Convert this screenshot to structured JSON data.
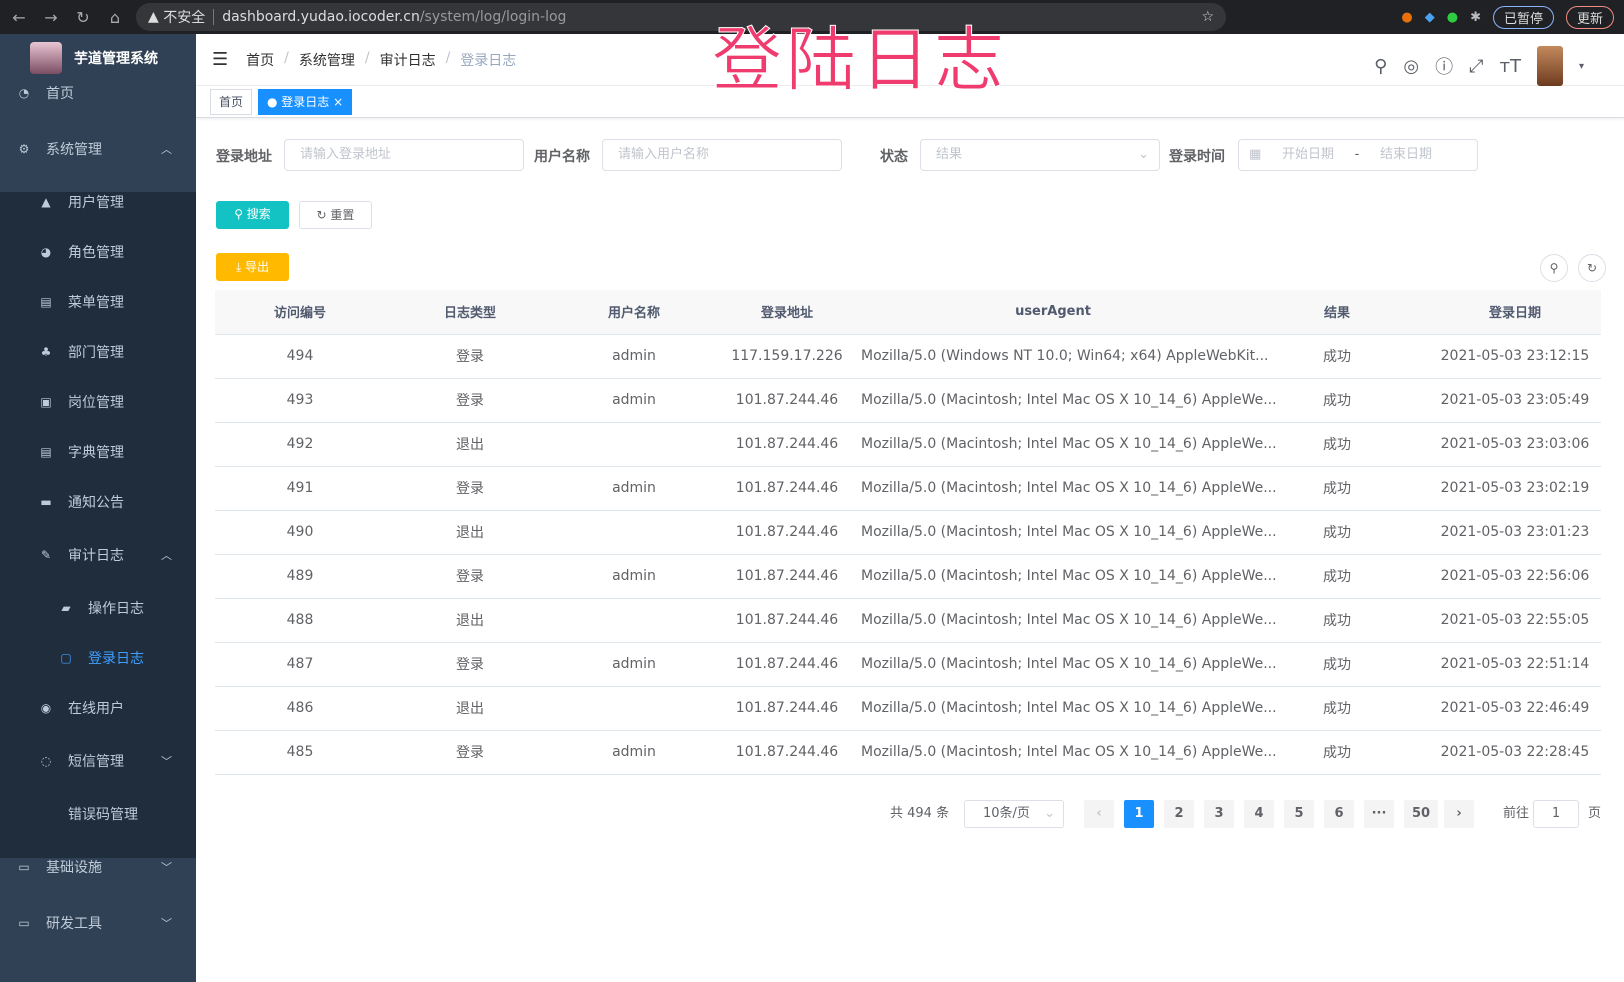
{
  "browser": {
    "security": "不安全",
    "url_host": "dashboard.yudao.iocoder.cn",
    "url_path": "/system/log/login-log",
    "profile": "已暂停",
    "update": "更新"
  },
  "app": {
    "title": "芋道管理系统"
  },
  "overlay_title": "登陆日志",
  "sidebar": {
    "items": [
      {
        "label": "首页",
        "icon": "dashboard-icon"
      },
      {
        "label": "系统管理",
        "icon": "gear-icon",
        "arrow": "︿"
      },
      {
        "label": "用户管理",
        "icon": "user-icon"
      },
      {
        "label": "角色管理",
        "icon": "peoples-icon"
      },
      {
        "label": "菜单管理",
        "icon": "tree-table-icon"
      },
      {
        "label": "部门管理",
        "icon": "tree-icon"
      },
      {
        "label": "岗位管理",
        "icon": "post-icon"
      },
      {
        "label": "字典管理",
        "icon": "dict-icon"
      },
      {
        "label": "通知公告",
        "icon": "message-icon"
      },
      {
        "label": "审计日志",
        "icon": "log-icon",
        "arrow": "︿"
      },
      {
        "label": "操作日志",
        "icon": "form-icon"
      },
      {
        "label": "登录日志",
        "icon": "logininfor-icon"
      },
      {
        "label": "在线用户",
        "icon": "online-icon"
      },
      {
        "label": "短信管理",
        "icon": "validCode-icon",
        "arrow": "﹀"
      },
      {
        "label": "错误码管理",
        "icon": "code-icon"
      },
      {
        "label": "基础设施",
        "icon": "monitor-icon",
        "arrow": "﹀"
      },
      {
        "label": "研发工具",
        "icon": "tool-icon",
        "arrow": "﹀"
      }
    ]
  },
  "breadcrumb": [
    "首页",
    "系统管理",
    "审计日志",
    "登录日志"
  ],
  "tags": [
    {
      "label": "首页"
    },
    {
      "label": "登录日志",
      "close": "×"
    }
  ],
  "filters": {
    "ip_label": "登录地址",
    "ip_placeholder": "请输入登录地址",
    "user_label": "用户名称",
    "user_placeholder": "请输入用户名称",
    "status_label": "状态",
    "status_placeholder": "结果",
    "time_label": "登录时间",
    "start_placeholder": "开始日期",
    "range_sep": "-",
    "end_placeholder": "结束日期"
  },
  "buttons": {
    "search": "搜索",
    "reset": "重置",
    "export": "导出"
  },
  "table": {
    "columns": [
      "访问编号",
      "日志类型",
      "用户名称",
      "登录地址",
      "userAgent",
      "结果",
      "登录日期"
    ],
    "rows": [
      [
        "494",
        "登录",
        "admin",
        "117.159.17.226",
        "Mozilla/5.0 (Windows NT 10.0; Win64; x64) AppleWebKit...",
        "成功",
        "2021-05-03 23:12:15"
      ],
      [
        "493",
        "登录",
        "admin",
        "101.87.244.46",
        "Mozilla/5.0 (Macintosh; Intel Mac OS X 10_14_6) AppleWe...",
        "成功",
        "2021-05-03 23:05:49"
      ],
      [
        "492",
        "退出",
        "",
        "101.87.244.46",
        "Mozilla/5.0 (Macintosh; Intel Mac OS X 10_14_6) AppleWe...",
        "成功",
        "2021-05-03 23:03:06"
      ],
      [
        "491",
        "登录",
        "admin",
        "101.87.244.46",
        "Mozilla/5.0 (Macintosh; Intel Mac OS X 10_14_6) AppleWe...",
        "成功",
        "2021-05-03 23:02:19"
      ],
      [
        "490",
        "退出",
        "",
        "101.87.244.46",
        "Mozilla/5.0 (Macintosh; Intel Mac OS X 10_14_6) AppleWe...",
        "成功",
        "2021-05-03 23:01:23"
      ],
      [
        "489",
        "登录",
        "admin",
        "101.87.244.46",
        "Mozilla/5.0 (Macintosh; Intel Mac OS X 10_14_6) AppleWe...",
        "成功",
        "2021-05-03 22:56:06"
      ],
      [
        "488",
        "退出",
        "",
        "101.87.244.46",
        "Mozilla/5.0 (Macintosh; Intel Mac OS X 10_14_6) AppleWe...",
        "成功",
        "2021-05-03 22:55:05"
      ],
      [
        "487",
        "登录",
        "admin",
        "101.87.244.46",
        "Mozilla/5.0 (Macintosh; Intel Mac OS X 10_14_6) AppleWe...",
        "成功",
        "2021-05-03 22:51:14"
      ],
      [
        "486",
        "退出",
        "",
        "101.87.244.46",
        "Mozilla/5.0 (Macintosh; Intel Mac OS X 10_14_6) AppleWe...",
        "成功",
        "2021-05-03 22:46:49"
      ],
      [
        "485",
        "登录",
        "admin",
        "101.87.244.46",
        "Mozilla/5.0 (Macintosh; Intel Mac OS X 10_14_6) AppleWe...",
        "成功",
        "2021-05-03 22:28:45"
      ]
    ]
  },
  "pagination": {
    "total": "共 494 条",
    "page_size": "10条/页",
    "pages": [
      "1",
      "2",
      "3",
      "4",
      "5",
      "6",
      "···",
      "50"
    ],
    "current": "1",
    "goto_label": "前往",
    "goto_value": "1",
    "goto_suffix": "页"
  },
  "colors": {
    "sidebar": "#304156",
    "submenu": "#1f2d3d",
    "primary": "#1890ff",
    "search": "#13c2c2",
    "export": "#ffba00",
    "overlay": "#ef3b6e"
  }
}
